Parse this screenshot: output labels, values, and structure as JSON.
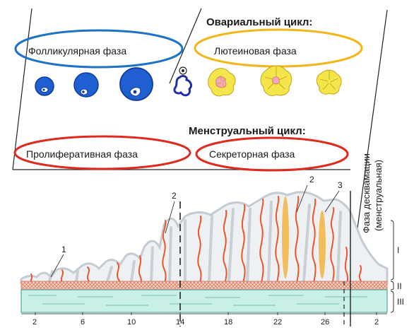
{
  "ovarian_cycle": {
    "title": "Овариальный  цикл:",
    "follicular_phase": "Фолликулярная фаза",
    "luteal_phase": "Лютеиновая фаза"
  },
  "menstrual_cycle": {
    "title": "Менструальный  цикл:",
    "proliferative_phase": "Пролиферативная фаза",
    "secretory_phase": "Секреторная фаза"
  },
  "desquamation": {
    "line1": "Фаза десквамации",
    "line2": "(менструальная)"
  },
  "callouts": [
    "1",
    "2",
    "2",
    "3"
  ],
  "layers": [
    "I",
    "II",
    "III"
  ],
  "days": [
    "2",
    "6",
    "10",
    "14",
    "18",
    "22",
    "26",
    "2"
  ],
  "colors": {
    "follicular_ellipse": "#1e73c6",
    "luteal_ellipse": "#f2b51c",
    "phase_ellipse_red": "#e02a1e",
    "follicle_blue": "#1f5fd0",
    "corpus_luteum_yellow": "#f4e64a",
    "spiral_artery": "#f0552a",
    "gland_gray": "#c9cfd6",
    "secretion_orange": "#f2b84a",
    "basal_layer": "#c8f0e8"
  }
}
